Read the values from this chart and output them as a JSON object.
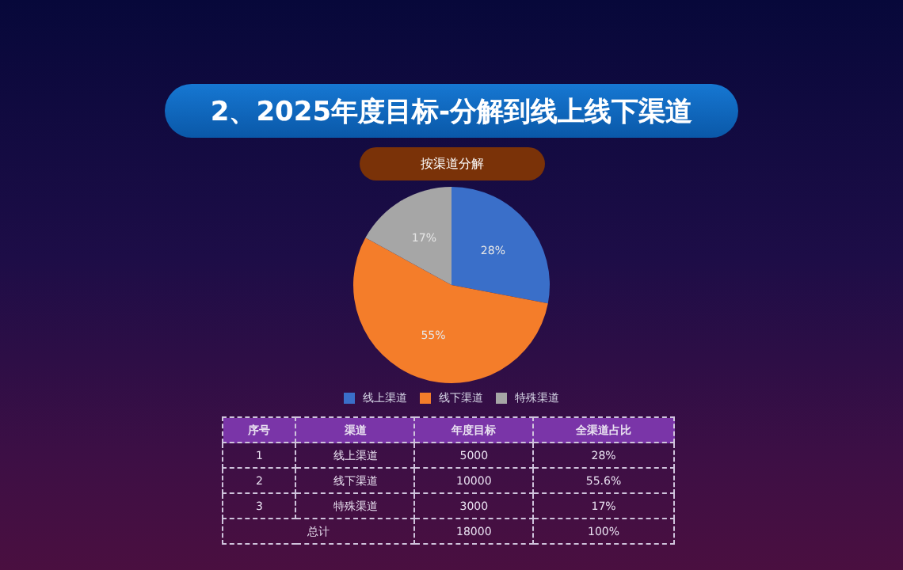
{
  "chart_data": {
    "type": "pie",
    "title": "2、2025年度目标-分解到线上线下渠道",
    "subtitle": "按渠道分解",
    "categories": [
      "线上渠道",
      "线下渠道",
      "特殊渠道"
    ],
    "values": [
      28,
      55,
      17
    ],
    "colors": [
      "#3a6fc9",
      "#f47d2a",
      "#a6a6a6"
    ],
    "value_labels": [
      "28%",
      "55%",
      "17%"
    ],
    "legend": "bottom",
    "annotations": [
      "序号",
      "渠道",
      "年度目标",
      "全渠道占比",
      "1",
      "2",
      "3",
      "5000",
      "10000",
      "3000",
      "28%",
      "55.6%",
      "17%",
      "总计",
      "18000",
      "100%"
    ]
  }
}
